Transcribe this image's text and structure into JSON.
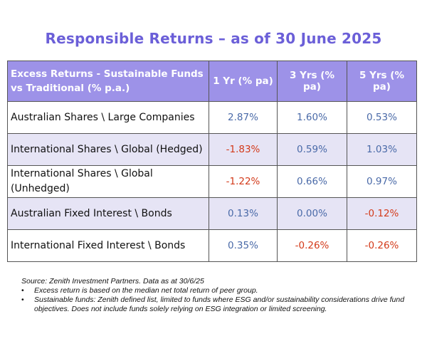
{
  "title": "Responsible Returns – as of 30 June 2025",
  "table": {
    "headers": {
      "label": "Excess Returns - Sustainable Funds vs Traditional (% p.a.)",
      "col1": "1 Yr (% pa)",
      "col2": "3 Yrs (% pa)",
      "col3": "5 Yrs (% pa)"
    },
    "rows": [
      {
        "label": "Australian Shares \\ Large Companies",
        "v1": "2.87%",
        "v2": "1.60%",
        "v3": "0.53%"
      },
      {
        "label": "International Shares \\ Global (Hedged)",
        "v1": "-1.83%",
        "v2": "0.59%",
        "v3": "1.03%"
      },
      {
        "label": "International Shares \\ Global (Unhedged)",
        "v1": "-1.22%",
        "v2": "0.66%",
        "v3": "0.97%"
      },
      {
        "label": "Australian Fixed Interest \\ Bonds",
        "v1": "0.13%",
        "v2": "0.00%",
        "v3": "-0.12%"
      },
      {
        "label": "International Fixed Interest \\ Bonds",
        "v1": "0.35%",
        "v2": "-0.26%",
        "v3": "-0.26%"
      }
    ]
  },
  "notes": {
    "source": "Source: Zenith Investment Partners. Data as at 30/6/25",
    "bullet_symbol": "•",
    "bullet1": "Excess return is based on the median net total return of peer group.",
    "bullet2": "Sustainable funds: Zenith defined list, limited to funds where ESG and/or sustainability considerations drive fund objectives. Does not include funds solely relying on ESG integration or limited screening."
  },
  "colors": {
    "title": "#6b5fd8",
    "header_bg": "#9d92e8",
    "shaded_row": "#e6e4f5",
    "positive_value": "#4a6aa8",
    "negative_value": "#d33a1a"
  }
}
